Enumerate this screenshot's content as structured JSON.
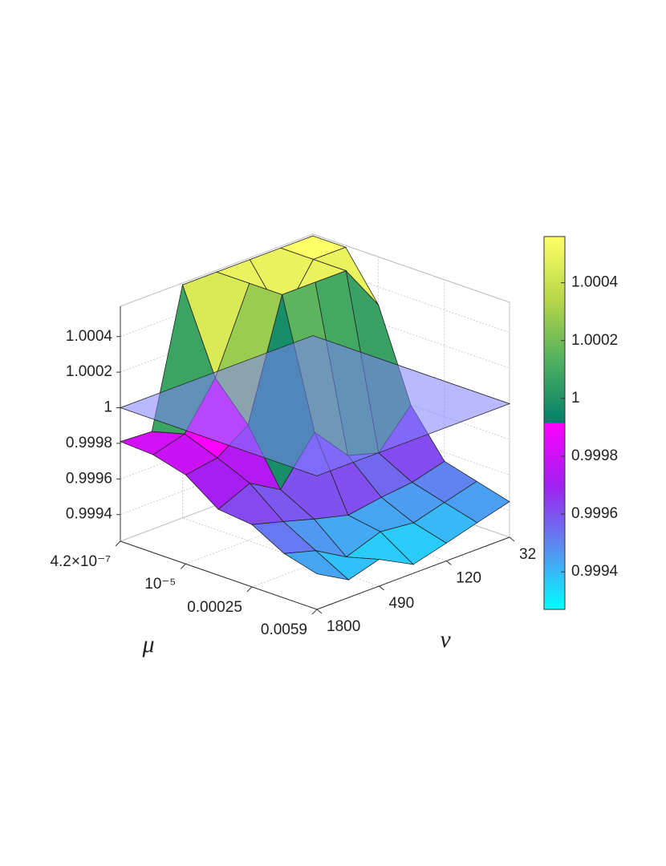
{
  "chart_data": {
    "type": "surface",
    "xlabel": "μ",
    "ylabel": "ν",
    "xscale": "log",
    "yscale": "log",
    "xlim": [
      4.2e-07,
      0.0059
    ],
    "ylim": [
      32,
      1800
    ],
    "zlim": [
      0.99925,
      1.00057
    ],
    "xticks": [
      {
        "value": 4.2e-07,
        "label": "4.2×10⁻⁷"
      },
      {
        "value": 1e-05,
        "label": "10⁻⁵"
      },
      0.00025,
      0.0059
    ],
    "yticks": [
      32,
      120,
      490,
      1800
    ],
    "zticks": [
      0.9994,
      0.9996,
      0.9998,
      1,
      1.0002,
      1.0004
    ],
    "x": [
      4.2e-07,
      2.06e-06,
      1.01e-05,
      4.9e-05,
      0.00025,
      0.0012,
      0.0059
    ],
    "y": [
      32,
      63,
      120,
      240,
      490,
      930,
      1800
    ],
    "z": [
      [
        1.00056,
        1.00056,
        1.00056,
        1.00056,
        1.00056,
        0.9998,
        0.99981
      ],
      [
        1.00056,
        1.00056,
        1.0003,
        1.00056,
        1.0001,
        0.99985,
        0.9998
      ],
      [
        1.0003,
        1.00056,
        1.00056,
        1.00056,
        0.9999,
        0.99978,
        0.99975
      ],
      [
        0.9998,
        0.9996,
        0.99965,
        0.99985,
        0.9996,
        0.9997,
        0.99962
      ],
      [
        0.99955,
        0.9995,
        0.99948,
        0.99945,
        0.9995,
        0.99955,
        0.9996
      ],
      [
        0.9995,
        0.99945,
        0.9994,
        0.99942,
        0.99935,
        0.99945,
        0.9995
      ],
      [
        0.99945,
        0.9994,
        0.99935,
        0.9993,
        0.9994,
        0.99935,
        0.99945
      ]
    ],
    "plane_z": 1,
    "plane_color": "#8080ff",
    "grid": true,
    "colormap": [
      [
        "#00ffff",
        "#5a8cf0",
        "#a020f0",
        "#ff00ff"
      ],
      [
        "#00806a",
        "#50b060",
        "#b8d848",
        "#ffff66"
      ]
    ],
    "clim": [
      0.99927,
      1.00056
    ],
    "cticks": [
      0.9994,
      0.9996,
      0.9998,
      1,
      1.0002,
      1.0004
    ]
  }
}
